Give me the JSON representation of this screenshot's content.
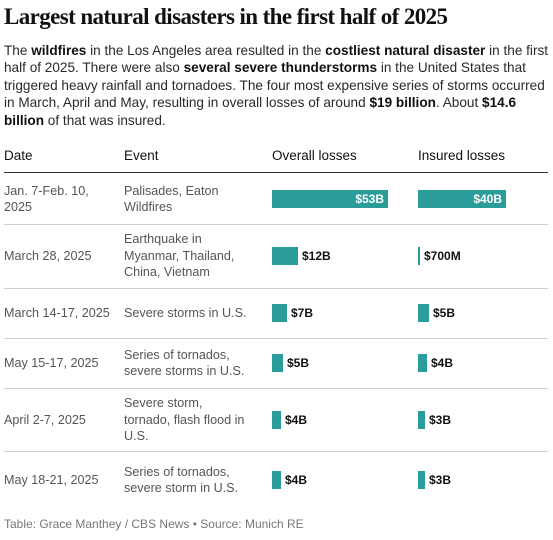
{
  "title": "Largest natural disasters in the first half of 2025",
  "intro_segments": [
    {
      "text": "The ",
      "bold": false
    },
    {
      "text": "wildfires",
      "bold": true
    },
    {
      "text": " in the Los Angeles area resulted in the ",
      "bold": false
    },
    {
      "text": "costliest natural disaster",
      "bold": true
    },
    {
      "text": " in the first half of 2025. There were also ",
      "bold": false
    },
    {
      "text": "several severe thunderstorms",
      "bold": true
    },
    {
      "text": " in the United States that triggered heavy rainfall and tornadoes. The four most expensive series of storms occurred in March, April and May, resulting in overall losses of around ",
      "bold": false
    },
    {
      "text": "$19 billion",
      "bold": true
    },
    {
      "text": ". About ",
      "bold": false
    },
    {
      "text": "$14.6 billion",
      "bold": true
    },
    {
      "text": " of that was insured.",
      "bold": false
    }
  ],
  "headers": {
    "date": "Date",
    "event": "Event",
    "overall": "Overall losses",
    "insured": "Insured losses"
  },
  "footer": "Table: Grace Manthey / CBS News • Source: Munich RE",
  "colors": {
    "bar": "#2a9d9b"
  },
  "chart_data": {
    "type": "table",
    "unit": "billion USD",
    "max_value": 53,
    "rows": [
      {
        "date": "Jan. 7-Feb. 10, 2025",
        "event": "Palisades, Eaton Wildfires",
        "overall": 53,
        "overall_label": "$53B",
        "insured": 40,
        "insured_label": "$40B"
      },
      {
        "date": "March 28, 2025",
        "event": "Earthquake in Myanmar, Thailand, China, Vietnam",
        "overall": 12,
        "overall_label": "$12B",
        "insured": 0.7,
        "insured_label": "$700M"
      },
      {
        "date": "March 14-17, 2025",
        "event": "Severe storms in U.S.",
        "overall": 7,
        "overall_label": "$7B",
        "insured": 5,
        "insured_label": "$5B"
      },
      {
        "date": "May 15-17, 2025",
        "event": "Series of tornados, severe storms in U.S.",
        "overall": 5,
        "overall_label": "$5B",
        "insured": 4,
        "insured_label": "$4B"
      },
      {
        "date": "April 2-7, 2025",
        "event": "Severe storm, tornado, flash flood in U.S.",
        "overall": 4,
        "overall_label": "$4B",
        "insured": 3,
        "insured_label": "$3B"
      },
      {
        "date": "May 18-21, 2025",
        "event": "Series of tornados, severe storm in U.S.",
        "overall": 4,
        "overall_label": "$4B",
        "insured": 3,
        "insured_label": "$3B"
      }
    ]
  }
}
